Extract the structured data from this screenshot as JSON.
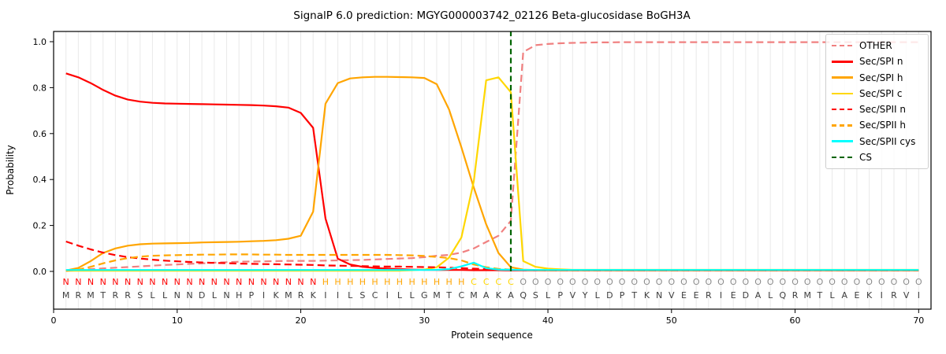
{
  "figure": {
    "title": "SignalP 6.0 prediction: MGYG000003742_02126 Beta-glucosidase BoGH3A",
    "xlabel": "Protein sequence",
    "ylabel": "Probability"
  },
  "legend": {
    "items": [
      {
        "label": "OTHER",
        "color": "#f08080",
        "dash": true
      },
      {
        "label": "Sec/SPI n",
        "color": "#ff0000",
        "dash": false
      },
      {
        "label": "Sec/SPI h",
        "color": "#ffa500",
        "dash": false
      },
      {
        "label": "Sec/SPI c",
        "color": "#ffd700",
        "dash": false
      },
      {
        "label": "Sec/SPII n",
        "color": "#ff0000",
        "dash": true
      },
      {
        "label": "Sec/SPII h",
        "color": "#ffa500",
        "dash": true
      },
      {
        "label": "Sec/SPII cys",
        "color": "#00ffff",
        "dash": false
      },
      {
        "label": "CS",
        "color": "#006400",
        "dash": true
      }
    ]
  },
  "chart_data": {
    "type": "line",
    "title": "SignalP 6.0 prediction: MGYG000003742_02126 Beta-glucosidase BoGH3A",
    "xlabel": "Protein sequence",
    "ylabel": "Probability",
    "xlim": [
      0,
      71
    ],
    "ylim": [
      -0.165,
      1.045
    ],
    "x_ticks": [
      0,
      10,
      20,
      30,
      40,
      50,
      60,
      70
    ],
    "y_ticks": [
      0.0,
      0.2,
      0.4,
      0.6,
      0.8,
      1.0
    ],
    "grid": "vertical gridline at every residue position",
    "legend_position": "upper right",
    "sequence": "MRMTRRSLLNNDLNHPIKMRKIILSCILLGMTCMAKAQSLPVYLDPTKNVEERIEDALQRMTLAEKIRVI",
    "region_labels": "NNNNNNNNNNNNNNNNNNNNNHHHHHHHHHHHHCCCCOOOOOOOOOOOOOOOOOOOOOOOOOOOOOOOOO",
    "region_colors": {
      "N": "#ff0000",
      "H": "#ffa500",
      "C": "#ffd700",
      "O": "#8c8c8c"
    },
    "sequence_color": "#3d3d3d",
    "cs_position": 37,
    "cs_color": "#006400",
    "x_note": "x = residue position 1..70",
    "series": [
      {
        "name": "OTHER",
        "color": "#f08080",
        "style": "dashed",
        "values": [
          0.005,
          0.007,
          0.01,
          0.013,
          0.016,
          0.019,
          0.022,
          0.025,
          0.028,
          0.03,
          0.033,
          0.035,
          0.038,
          0.04,
          0.042,
          0.043,
          0.044,
          0.045,
          0.046,
          0.046,
          0.046,
          0.047,
          0.048,
          0.049,
          0.05,
          0.052,
          0.054,
          0.056,
          0.058,
          0.062,
          0.068,
          0.072,
          0.082,
          0.1,
          0.128,
          0.155,
          0.22,
          0.955,
          0.985,
          0.99,
          0.993,
          0.995,
          0.996,
          0.997,
          0.997,
          0.998,
          0.998,
          0.998,
          0.998,
          0.998,
          0.998,
          0.998,
          0.998,
          0.998,
          0.998,
          0.998,
          0.998,
          0.998,
          0.998,
          0.998,
          0.998,
          0.998,
          0.998,
          0.998,
          0.998,
          0.998,
          0.998,
          0.998,
          0.998,
          0.998
        ]
      },
      {
        "name": "Sec/SPI n",
        "color": "#ff0000",
        "style": "solid",
        "values": [
          0.862,
          0.845,
          0.82,
          0.79,
          0.765,
          0.748,
          0.739,
          0.734,
          0.731,
          0.73,
          0.729,
          0.728,
          0.727,
          0.726,
          0.725,
          0.724,
          0.722,
          0.719,
          0.713,
          0.69,
          0.625,
          0.23,
          0.055,
          0.03,
          0.02,
          0.015,
          0.012,
          0.01,
          0.008,
          0.007,
          0.006,
          0.006,
          0.006,
          0.005,
          0.005,
          0.005,
          0.004,
          0.004,
          0.004,
          0.004,
          0.004,
          0.004,
          0.004,
          0.004,
          0.004,
          0.004,
          0.004,
          0.004,
          0.004,
          0.004,
          0.004,
          0.004,
          0.004,
          0.004,
          0.004,
          0.004,
          0.004,
          0.004,
          0.004,
          0.004,
          0.004,
          0.004,
          0.004,
          0.004,
          0.004,
          0.004,
          0.004,
          0.004,
          0.004,
          0.004
        ]
      },
      {
        "name": "Sec/SPI h",
        "color": "#ffa500",
        "style": "solid",
        "values": [
          0.004,
          0.015,
          0.045,
          0.08,
          0.1,
          0.112,
          0.118,
          0.121,
          0.122,
          0.123,
          0.124,
          0.126,
          0.127,
          0.128,
          0.129,
          0.131,
          0.133,
          0.136,
          0.142,
          0.155,
          0.26,
          0.73,
          0.82,
          0.84,
          0.845,
          0.847,
          0.847,
          0.846,
          0.845,
          0.842,
          0.815,
          0.705,
          0.54,
          0.365,
          0.205,
          0.08,
          0.018,
          0.008,
          0.006,
          0.005,
          0.005,
          0.005,
          0.005,
          0.005,
          0.005,
          0.005,
          0.005,
          0.005,
          0.005,
          0.005,
          0.005,
          0.005,
          0.005,
          0.005,
          0.005,
          0.005,
          0.005,
          0.005,
          0.005,
          0.005,
          0.005,
          0.005,
          0.005,
          0.005,
          0.005,
          0.005,
          0.005,
          0.005,
          0.005,
          0.005
        ]
      },
      {
        "name": "Sec/SPI c",
        "color": "#ffd700",
        "style": "solid",
        "values": [
          0.003,
          0.003,
          0.003,
          0.003,
          0.003,
          0.003,
          0.003,
          0.003,
          0.003,
          0.003,
          0.003,
          0.003,
          0.003,
          0.003,
          0.003,
          0.003,
          0.003,
          0.003,
          0.003,
          0.003,
          0.003,
          0.003,
          0.003,
          0.003,
          0.003,
          0.003,
          0.003,
          0.003,
          0.005,
          0.008,
          0.018,
          0.06,
          0.148,
          0.392,
          0.832,
          0.845,
          0.78,
          0.045,
          0.02,
          0.012,
          0.009,
          0.007,
          0.007,
          0.007,
          0.007,
          0.007,
          0.007,
          0.007,
          0.007,
          0.007,
          0.007,
          0.007,
          0.007,
          0.007,
          0.007,
          0.007,
          0.007,
          0.007,
          0.007,
          0.007,
          0.007,
          0.007,
          0.007,
          0.007,
          0.007,
          0.007,
          0.007,
          0.007,
          0.007,
          0.007
        ]
      },
      {
        "name": "Sec/SPII n",
        "color": "#ff0000",
        "style": "dashed",
        "values": [
          0.13,
          0.112,
          0.096,
          0.082,
          0.071,
          0.062,
          0.056,
          0.051,
          0.047,
          0.044,
          0.041,
          0.039,
          0.037,
          0.036,
          0.034,
          0.033,
          0.032,
          0.031,
          0.03,
          0.029,
          0.028,
          0.026,
          0.025,
          0.024,
          0.023,
          0.022,
          0.021,
          0.021,
          0.02,
          0.019,
          0.018,
          0.016,
          0.014,
          0.012,
          0.01,
          0.008,
          0.007,
          0.006,
          0.005,
          0.004,
          0.004,
          0.004,
          0.004,
          0.004,
          0.004,
          0.004,
          0.004,
          0.004,
          0.004,
          0.004,
          0.004,
          0.004,
          0.004,
          0.004,
          0.004,
          0.004,
          0.004,
          0.004,
          0.004,
          0.004,
          0.004,
          0.004,
          0.004,
          0.004,
          0.004,
          0.004,
          0.004,
          0.004,
          0.004,
          0.004
        ]
      },
      {
        "name": "Sec/SPII h",
        "color": "#ffa500",
        "style": "dashed",
        "values": [
          0.002,
          0.008,
          0.02,
          0.035,
          0.048,
          0.058,
          0.064,
          0.068,
          0.07,
          0.071,
          0.072,
          0.073,
          0.073,
          0.074,
          0.074,
          0.074,
          0.073,
          0.073,
          0.072,
          0.072,
          0.072,
          0.072,
          0.072,
          0.072,
          0.072,
          0.072,
          0.072,
          0.071,
          0.07,
          0.067,
          0.063,
          0.058,
          0.048,
          0.03,
          0.018,
          0.011,
          0.008,
          0.006,
          0.005,
          0.005,
          0.005,
          0.005,
          0.005,
          0.005,
          0.005,
          0.005,
          0.005,
          0.005,
          0.005,
          0.005,
          0.005,
          0.005,
          0.005,
          0.005,
          0.005,
          0.005,
          0.005,
          0.005,
          0.005,
          0.005,
          0.005,
          0.005,
          0.005,
          0.005,
          0.005,
          0.005,
          0.005,
          0.005,
          0.005,
          0.005
        ]
      },
      {
        "name": "Sec/SPII cys",
        "color": "#00ffff",
        "style": "solid",
        "values": [
          0.006,
          0.006,
          0.006,
          0.006,
          0.006,
          0.006,
          0.006,
          0.006,
          0.006,
          0.006,
          0.006,
          0.006,
          0.006,
          0.006,
          0.006,
          0.006,
          0.006,
          0.006,
          0.006,
          0.006,
          0.006,
          0.006,
          0.006,
          0.006,
          0.006,
          0.006,
          0.006,
          0.006,
          0.006,
          0.006,
          0.007,
          0.01,
          0.022,
          0.038,
          0.014,
          0.008,
          0.007,
          0.006,
          0.006,
          0.006,
          0.006,
          0.006,
          0.006,
          0.006,
          0.006,
          0.006,
          0.006,
          0.006,
          0.006,
          0.006,
          0.006,
          0.006,
          0.006,
          0.006,
          0.006,
          0.006,
          0.006,
          0.006,
          0.006,
          0.006,
          0.006,
          0.006,
          0.006,
          0.006,
          0.006,
          0.006,
          0.006,
          0.006,
          0.006,
          0.006
        ]
      }
    ]
  }
}
